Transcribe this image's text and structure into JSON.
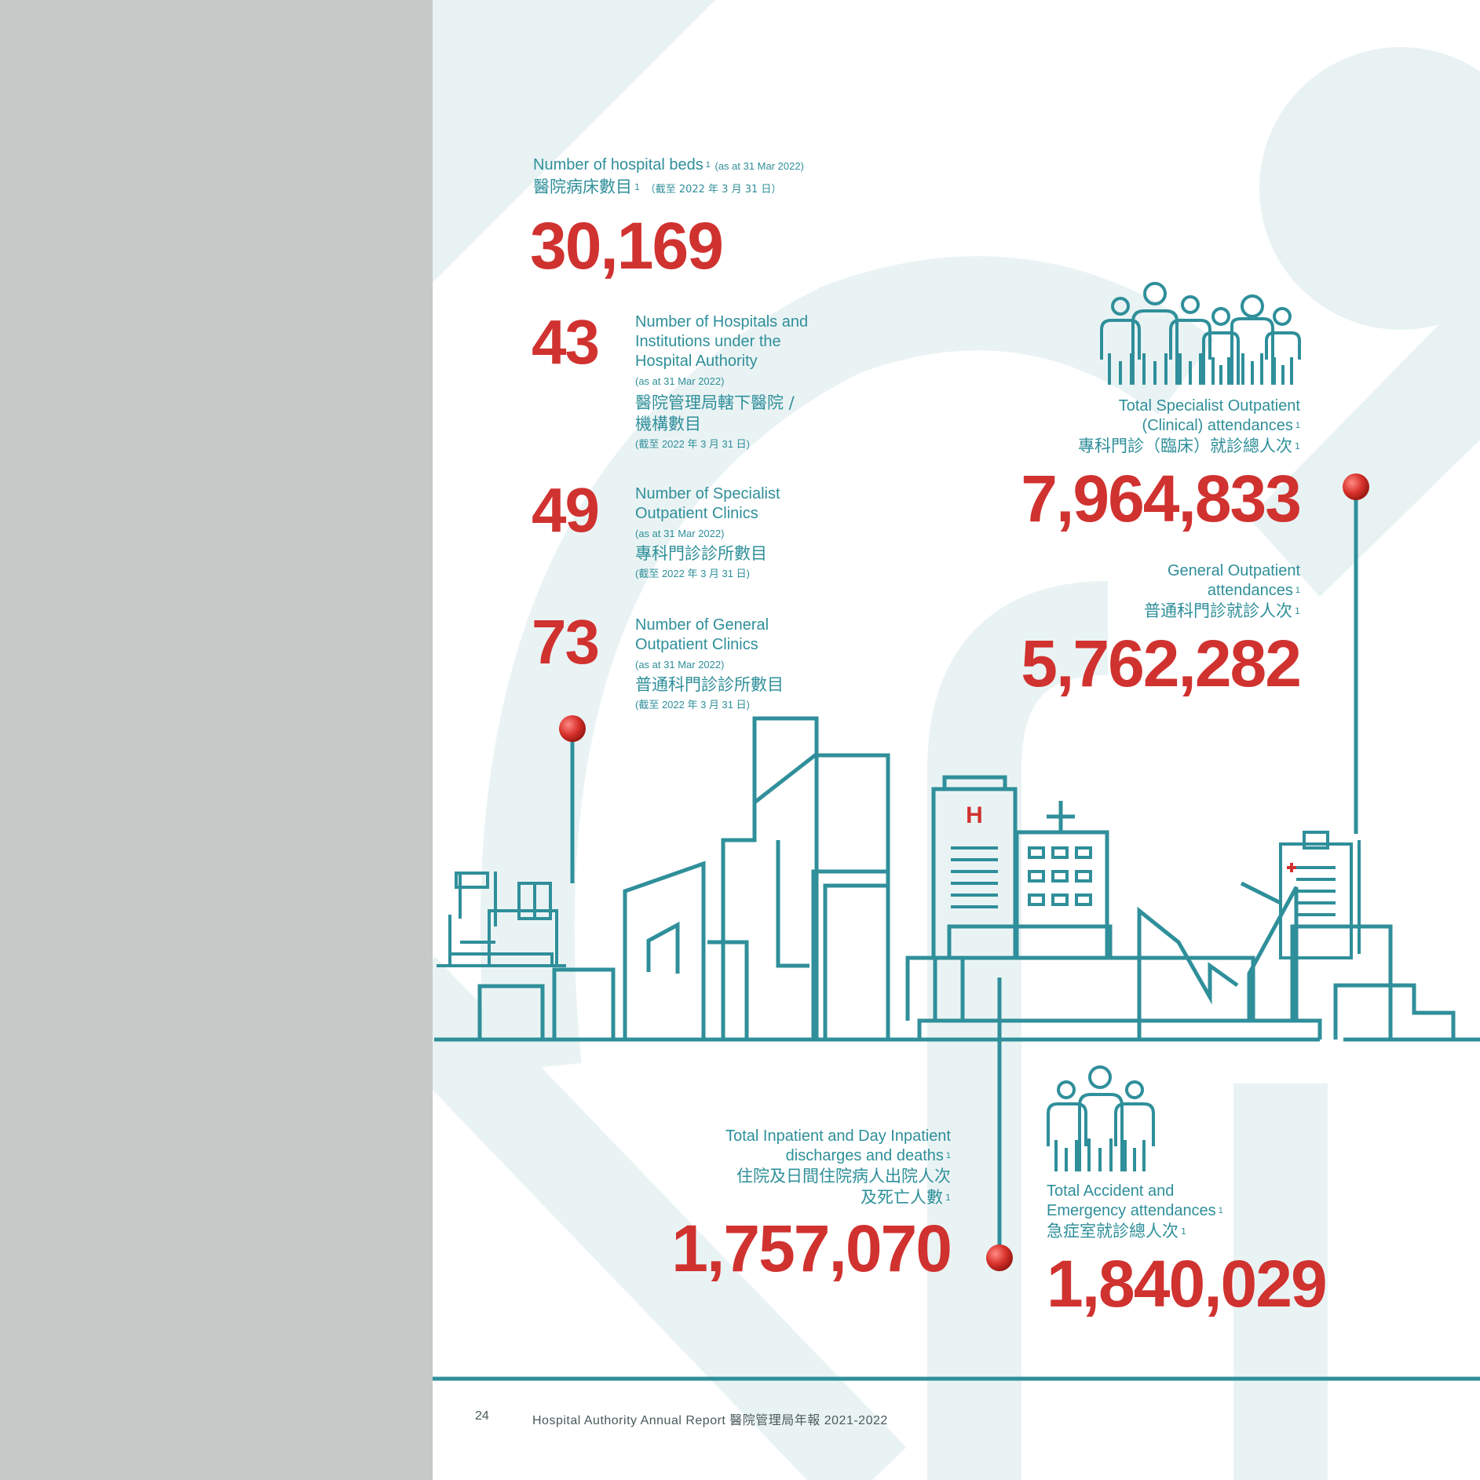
{
  "beds": {
    "label_en": "Number of hospital beds",
    "note_en": "(as at 31 Mar 2022)",
    "label_zh": "醫院病床數目",
    "note_zh": "（截至 2022 年 3 月 31 日）",
    "value": "30,169",
    "footnote": "1"
  },
  "hospitals": {
    "value": "43",
    "label_en": [
      "Number of Hospitals and",
      "Institutions under the",
      "Hospital Authority"
    ],
    "note_en": "(as at 31 Mar 2022)",
    "label_zh": [
      "醫院管理局轄下醫院 /",
      "機構數目"
    ],
    "note_zh": "(截至 2022 年 3 月 31 日)"
  },
  "soc": {
    "value": "49",
    "label_en": [
      "Number of Specialist",
      "Outpatient Clinics"
    ],
    "note_en": "(as at 31 Mar 2022)",
    "label_zh": "專科門診診所數目",
    "note_zh": "(截至 2022 年 3 月 31 日)"
  },
  "gopc": {
    "value": "73",
    "label_en": [
      "Number of General",
      "Outpatient Clinics"
    ],
    "note_en": "(as at 31 Mar 2022)",
    "label_zh": "普通科門診診所數目",
    "note_zh": "(截至 2022 年 3 月 31 日)"
  },
  "specialist_attendances": {
    "label_en": [
      "Total Specialist Outpatient",
      "(Clinical) attendances"
    ],
    "label_zh": "專科門診（臨床）就診總人次",
    "value": "7,964,833",
    "footnote": "1"
  },
  "general_attendances": {
    "label_en": [
      "General Outpatient",
      "attendances"
    ],
    "label_zh": "普通科門診就診人次",
    "value": "5,762,282",
    "footnote": "1"
  },
  "inpatient": {
    "label_en": [
      "Total Inpatient and Day Inpatient",
      "discharges and deaths"
    ],
    "label_zh": [
      "住院及日間住院病人出院人次",
      "及死亡人數"
    ],
    "value": "1,757,070",
    "footnote": "1"
  },
  "ae": {
    "label_en": [
      "Total Accident and",
      "Emergency attendances"
    ],
    "label_zh": "急症室就診總人次",
    "value": "1,840,029",
    "footnote": "1"
  },
  "footer": {
    "page_number": "24",
    "title": "Hospital Authority Annual Report 醫院管理局年報 2021-2022"
  },
  "icons": [
    "people-group-icon",
    "hospital-bed-icon",
    "hospital-building-icon",
    "clipboard-icon",
    "people-trio-icon",
    "pin-icon"
  ],
  "colors": {
    "teal": "#2f8f9a",
    "red": "#d0322f",
    "grey_bar": "#c6c9c8",
    "watermark": "#e6f1f2"
  }
}
